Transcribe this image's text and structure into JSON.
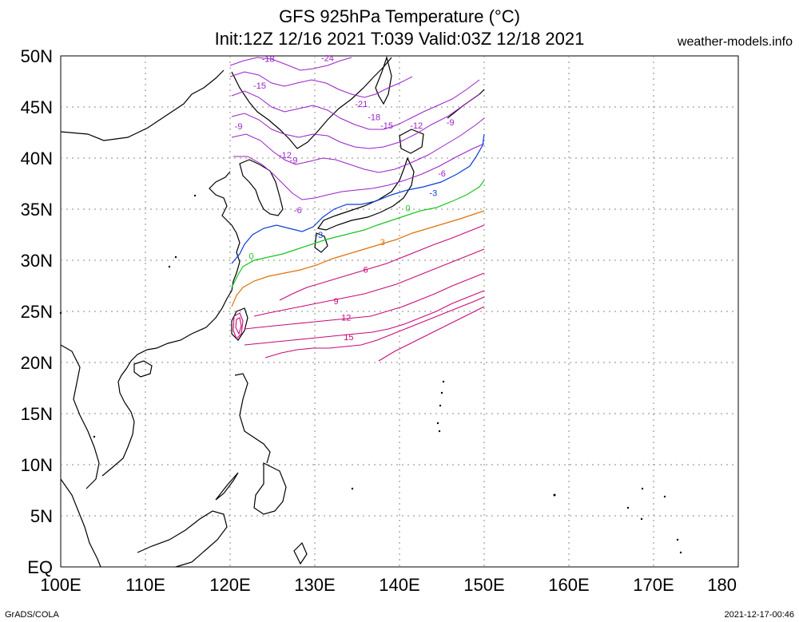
{
  "header": {
    "title_line1": "GFS 925hPa Temperature (°C)",
    "title_line2": "Init:12Z 12/16 2021 T:039 Valid:03Z 12/18 2021",
    "brand": "weather-models.info"
  },
  "footer": {
    "left": "GrADS/COLA",
    "right": "2021-12-17-00:46"
  },
  "axes": {
    "lat_labels": [
      "50N",
      "45N",
      "40N",
      "35N",
      "30N",
      "25N",
      "20N",
      "15N",
      "10N",
      "5N",
      "EQ"
    ],
    "lon_labels": [
      "100E",
      "110E",
      "120E",
      "130E",
      "140E",
      "150E",
      "160E",
      "170E",
      "180"
    ]
  },
  "chart_data": {
    "type": "contour-map",
    "variable": "925hPa Temperature (°C)",
    "x_range_deg_e": [
      100,
      180
    ],
    "y_range_deg_n": [
      0,
      50
    ],
    "grid": true,
    "contour_labels": [
      {
        "value": "-24",
        "lon": 131.5,
        "lat": 49.5,
        "color": "#9b1fc9"
      },
      {
        "value": "-18",
        "lon": 124.5,
        "lat": 49.4,
        "color": "#9b1fc9"
      },
      {
        "value": "-15",
        "lon": 123.5,
        "lat": 46.8,
        "color": "#9b1fc9"
      },
      {
        "value": "-21",
        "lon": 135.5,
        "lat": 45.0,
        "color": "#9b1fc9"
      },
      {
        "value": "-18",
        "lon": 137.0,
        "lat": 43.7,
        "color": "#9b1fc9"
      },
      {
        "value": "-15",
        "lon": 138.5,
        "lat": 42.9,
        "color": "#9b1fc9"
      },
      {
        "value": "-12",
        "lon": 142.0,
        "lat": 42.9,
        "color": "#9b1fc9"
      },
      {
        "value": "-9",
        "lon": 146.0,
        "lat": 43.2,
        "color": "#9b1fc9"
      },
      {
        "value": "-9",
        "lon": 121.0,
        "lat": 42.8,
        "color": "#9b1fc9"
      },
      {
        "value": "-12",
        "lon": 126.5,
        "lat": 40.0,
        "color": "#9b1fc9"
      },
      {
        "value": "-9",
        "lon": 127.5,
        "lat": 39.5,
        "color": "#9b1fc9"
      },
      {
        "value": "-6",
        "lon": 145.0,
        "lat": 38.2,
        "color": "#9b1fc9"
      },
      {
        "value": "-6",
        "lon": 128.0,
        "lat": 34.6,
        "color": "#9b1fc9"
      },
      {
        "value": "-3",
        "lon": 144.0,
        "lat": 36.3,
        "color": "#0b3fd8"
      },
      {
        "value": "-3",
        "lon": 130.5,
        "lat": 32.2,
        "color": "#0b3fd8"
      },
      {
        "value": "0",
        "lon": 141.0,
        "lat": 34.8,
        "color": "#19c41e"
      },
      {
        "value": "0",
        "lon": 122.5,
        "lat": 30.1,
        "color": "#19c41e"
      },
      {
        "value": "3",
        "lon": 138.0,
        "lat": 31.5,
        "color": "#e0700a"
      },
      {
        "value": "6",
        "lon": 136.0,
        "lat": 28.8,
        "color": "#c80a78"
      },
      {
        "value": "9",
        "lon": 132.5,
        "lat": 25.7,
        "color": "#c80a78"
      },
      {
        "value": "12",
        "lon": 133.7,
        "lat": 24.1,
        "color": "#c80a78"
      },
      {
        "value": "15",
        "lon": 134.0,
        "lat": 22.2,
        "color": "#c80a78"
      }
    ]
  },
  "colors": {
    "cold": "#9b1fc9",
    "minus3": "#0b3fd8",
    "zero": "#19c41e",
    "plus3": "#e0700a",
    "warm": "#c80a78",
    "grid": "#8a8a8a",
    "coast": "#000000"
  }
}
